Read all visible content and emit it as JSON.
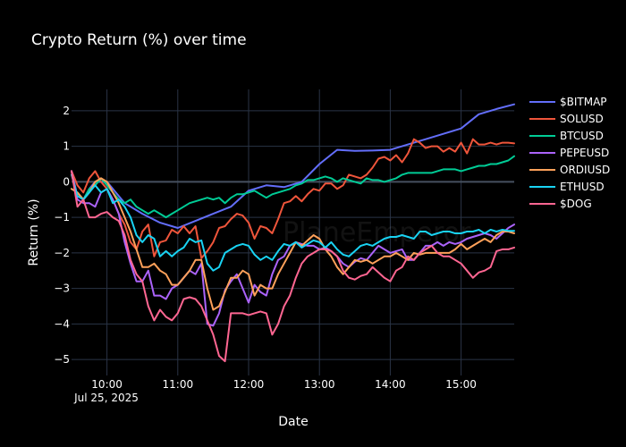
{
  "chart_data": {
    "type": "line",
    "title": "Crypto Return (%) over time",
    "xlabel": "Date",
    "ylabel": "Return (%)",
    "watermark": "PlaneEmperor",
    "x_date_label": "Jul 25, 2025",
    "x_tick_labels": [
      "10:00",
      "11:00",
      "12:00",
      "13:00",
      "14:00",
      "15:00"
    ],
    "x_tick_hours": [
      10,
      11,
      12,
      13,
      14,
      15
    ],
    "xlim_hours": [
      9.5,
      15.75
    ],
    "y_ticks": [
      2,
      1,
      0,
      -1,
      -2,
      -3,
      -4,
      -5
    ],
    "y_tick_labels": [
      "2",
      "1",
      "0",
      "−1",
      "−2",
      "−3",
      "−4",
      "−5"
    ],
    "ylim": [
      -5.45,
      2.6
    ],
    "grid": true,
    "legend_position": "top-right",
    "colors": {
      "background": "#000000",
      "grid": "#2a3446",
      "zeroline": "#46505f",
      "text": "#ffffff"
    },
    "series": [
      {
        "name": "$BITMAP",
        "color": "#636efa",
        "x": [
          "09:30",
          "09:35",
          "09:40",
          "09:45",
          "09:50",
          "10:00",
          "10:05",
          "10:15",
          "10:30",
          "10:45",
          "11:00",
          "11:15",
          "11:30",
          "11:45",
          "12:00",
          "12:15",
          "12:30",
          "12:45",
          "13:00",
          "13:15",
          "13:30",
          "13:45",
          "14:00",
          "14:15",
          "14:30",
          "14:45",
          "15:00",
          "15:15",
          "15:30",
          "15:45"
        ],
        "y": [
          0.3,
          -0.4,
          -0.5,
          -0.2,
          0.0,
          0.0,
          -0.2,
          -0.6,
          -0.9,
          -1.15,
          -1.3,
          -1.1,
          -0.9,
          -0.7,
          -0.25,
          -0.1,
          -0.15,
          0.0,
          0.5,
          0.9,
          0.87,
          0.88,
          0.9,
          1.05,
          1.2,
          1.35,
          1.5,
          1.9,
          2.05,
          2.18
        ]
      },
      {
        "name": "SOLUSD",
        "color": "#ef553b",
        "x": [
          "09:30",
          "09:35",
          "09:40",
          "09:45",
          "09:50",
          "09:55",
          "10:00",
          "10:05",
          "10:10",
          "10:15",
          "10:20",
          "10:25",
          "10:30",
          "10:35",
          "10:40",
          "10:45",
          "10:50",
          "10:55",
          "11:00",
          "11:05",
          "11:10",
          "11:15",
          "11:20",
          "11:25",
          "11:30",
          "11:35",
          "11:40",
          "11:45",
          "11:50",
          "11:55",
          "12:00",
          "12:05",
          "12:10",
          "12:15",
          "12:20",
          "12:25",
          "12:30",
          "12:35",
          "12:40",
          "12:45",
          "12:50",
          "12:55",
          "13:00",
          "13:05",
          "13:10",
          "13:15",
          "13:20",
          "13:25",
          "13:30",
          "13:35",
          "13:40",
          "13:45",
          "13:50",
          "13:55",
          "14:00",
          "14:05",
          "14:10",
          "14:15",
          "14:20",
          "14:25",
          "14:30",
          "14:35",
          "14:40",
          "14:45",
          "14:50",
          "14:55",
          "15:00",
          "15:05",
          "15:10",
          "15:15",
          "15:20",
          "15:25",
          "15:30",
          "15:35",
          "15:40",
          "15:45"
        ],
        "y": [
          0.3,
          -0.1,
          -0.3,
          0.1,
          0.3,
          0.0,
          -0.2,
          -0.5,
          -0.9,
          -1.2,
          -1.7,
          -1.9,
          -1.4,
          -1.2,
          -2.1,
          -1.7,
          -1.65,
          -1.35,
          -1.45,
          -1.25,
          -1.45,
          -1.25,
          -2.15,
          -1.95,
          -1.7,
          -1.3,
          -1.25,
          -1.05,
          -0.9,
          -0.95,
          -1.15,
          -1.6,
          -1.25,
          -1.3,
          -1.45,
          -1.05,
          -0.6,
          -0.55,
          -0.4,
          -0.55,
          -0.35,
          -0.2,
          -0.25,
          -0.05,
          -0.05,
          -0.2,
          -0.1,
          0.2,
          0.15,
          0.1,
          0.2,
          0.4,
          0.65,
          0.7,
          0.6,
          0.75,
          0.55,
          0.8,
          1.2,
          1.1,
          0.95,
          1.0,
          1.0,
          0.85,
          0.95,
          0.85,
          1.1,
          0.8,
          1.2,
          1.05,
          1.05,
          1.1,
          1.05,
          1.1,
          1.1,
          1.08
        ]
      },
      {
        "name": "BTCUSD",
        "color": "#00cc96",
        "x": [
          "09:30",
          "09:35",
          "09:40",
          "09:45",
          "09:50",
          "09:55",
          "10:00",
          "10:05",
          "10:10",
          "10:15",
          "10:20",
          "10:25",
          "10:30",
          "10:35",
          "10:40",
          "10:45",
          "10:50",
          "10:55",
          "11:00",
          "11:05",
          "11:10",
          "11:15",
          "11:20",
          "11:25",
          "11:30",
          "11:35",
          "11:40",
          "11:45",
          "11:50",
          "11:55",
          "12:00",
          "12:05",
          "12:10",
          "12:15",
          "12:20",
          "12:25",
          "12:30",
          "12:35",
          "12:40",
          "12:45",
          "12:50",
          "12:55",
          "13:00",
          "13:05",
          "13:10",
          "13:15",
          "13:20",
          "13:25",
          "13:30",
          "13:35",
          "13:40",
          "13:45",
          "13:50",
          "13:55",
          "14:00",
          "14:05",
          "14:10",
          "14:15",
          "14:20",
          "14:25",
          "14:30",
          "14:35",
          "14:40",
          "14:45",
          "14:50",
          "14:55",
          "15:00",
          "15:05",
          "15:10",
          "15:15",
          "15:20",
          "15:25",
          "15:30",
          "15:35",
          "15:40",
          "15:45"
        ],
        "y": [
          -0.2,
          -0.3,
          -0.5,
          -0.2,
          -0.1,
          0.1,
          -0.1,
          -0.3,
          -0.5,
          -0.6,
          -0.5,
          -0.7,
          -0.8,
          -0.9,
          -0.8,
          -0.9,
          -1.0,
          -0.9,
          -0.8,
          -0.7,
          -0.6,
          -0.55,
          -0.5,
          -0.45,
          -0.5,
          -0.45,
          -0.6,
          -0.45,
          -0.35,
          -0.35,
          -0.3,
          -0.25,
          -0.35,
          -0.45,
          -0.35,
          -0.3,
          -0.25,
          -0.2,
          -0.1,
          -0.05,
          0.05,
          0.05,
          0.1,
          0.15,
          0.1,
          0.0,
          0.1,
          0.05,
          0.0,
          -0.05,
          0.1,
          0.05,
          0.05,
          0.0,
          0.05,
          0.1,
          0.2,
          0.25,
          0.25,
          0.25,
          0.25,
          0.25,
          0.3,
          0.35,
          0.35,
          0.35,
          0.3,
          0.35,
          0.4,
          0.45,
          0.45,
          0.5,
          0.5,
          0.55,
          0.6,
          0.72
        ]
      },
      {
        "name": "PEPEUSD",
        "color": "#ab63fa",
        "x": [
          "09:30",
          "09:35",
          "09:40",
          "09:45",
          "09:50",
          "09:55",
          "10:00",
          "10:05",
          "10:10",
          "10:15",
          "10:20",
          "10:25",
          "10:30",
          "10:35",
          "10:40",
          "10:45",
          "10:50",
          "10:55",
          "11:00",
          "11:05",
          "11:10",
          "11:15",
          "11:20",
          "11:25",
          "11:30",
          "11:35",
          "11:40",
          "11:45",
          "11:50",
          "11:55",
          "12:00",
          "12:05",
          "12:10",
          "12:15",
          "12:20",
          "12:25",
          "12:30",
          "12:35",
          "12:40",
          "12:45",
          "12:50",
          "12:55",
          "13:00",
          "13:05",
          "13:10",
          "13:15",
          "13:20",
          "13:25",
          "13:30",
          "13:35",
          "13:40",
          "13:45",
          "13:50",
          "13:55",
          "14:00",
          "14:05",
          "14:10",
          "14:15",
          "14:20",
          "14:25",
          "14:30",
          "14:35",
          "14:40",
          "14:45",
          "14:50",
          "14:55",
          "15:00",
          "15:05",
          "15:10",
          "15:15",
          "15:20",
          "15:25",
          "15:30",
          "15:35",
          "15:40",
          "15:45"
        ],
        "y": [
          0.3,
          -0.5,
          -0.6,
          -0.6,
          -0.7,
          -0.3,
          -0.2,
          -0.5,
          -0.9,
          -1.7,
          -2.3,
          -2.8,
          -2.8,
          -2.5,
          -3.2,
          -3.2,
          -3.3,
          -3.0,
          -2.9,
          -2.7,
          -2.5,
          -2.6,
          -2.3,
          -4.0,
          -4.05,
          -3.7,
          -3.05,
          -2.8,
          -2.6,
          -3.0,
          -3.4,
          -2.9,
          -3.1,
          -3.2,
          -2.6,
          -2.2,
          -2.1,
          -1.8,
          -1.7,
          -1.75,
          -1.8,
          -1.8,
          -1.9,
          -1.85,
          -1.95,
          -2.1,
          -2.3,
          -2.4,
          -2.25,
          -2.15,
          -2.2,
          -2.0,
          -1.8,
          -1.9,
          -2.0,
          -1.95,
          -1.9,
          -2.2,
          -2.2,
          -2.0,
          -1.8,
          -1.8,
          -1.7,
          -1.8,
          -1.7,
          -1.75,
          -1.7,
          -1.6,
          -1.55,
          -1.5,
          -1.45,
          -1.5,
          -1.6,
          -1.45,
          -1.3,
          -1.2
        ]
      },
      {
        "name": "ORDIUSD",
        "color": "#ffa15a",
        "x": [
          "09:30",
          "09:35",
          "09:40",
          "09:45",
          "09:50",
          "09:55",
          "10:00",
          "10:05",
          "10:10",
          "10:15",
          "10:20",
          "10:25",
          "10:30",
          "10:35",
          "10:40",
          "10:45",
          "10:50",
          "10:55",
          "11:00",
          "11:05",
          "11:10",
          "11:15",
          "11:20",
          "11:25",
          "11:30",
          "11:35",
          "11:40",
          "11:45",
          "11:50",
          "11:55",
          "12:00",
          "12:05",
          "12:10",
          "12:15",
          "12:20",
          "12:25",
          "12:30",
          "12:35",
          "12:40",
          "12:45",
          "12:50",
          "12:55",
          "13:00",
          "13:05",
          "13:10",
          "13:15",
          "13:20",
          "13:25",
          "13:30",
          "13:35",
          "13:40",
          "13:45",
          "13:50",
          "13:55",
          "14:00",
          "14:05",
          "14:10",
          "14:15",
          "14:20",
          "14:25",
          "14:30",
          "14:35",
          "14:40",
          "14:45",
          "14:50",
          "14:55",
          "15:00",
          "15:05",
          "15:10",
          "15:15",
          "15:20",
          "15:25",
          "15:30",
          "15:35",
          "15:40",
          "15:45"
        ],
        "y": [
          -0.2,
          -0.3,
          -0.5,
          -0.3,
          0.0,
          0.1,
          0.0,
          -0.3,
          -0.6,
          -1.0,
          -1.4,
          -1.9,
          -2.4,
          -2.4,
          -2.3,
          -2.5,
          -2.6,
          -2.9,
          -2.9,
          -2.7,
          -2.5,
          -2.2,
          -2.2,
          -3.0,
          -3.6,
          -3.5,
          -3.1,
          -2.7,
          -2.7,
          -2.5,
          -2.6,
          -3.2,
          -2.9,
          -3.0,
          -3.0,
          -2.6,
          -2.3,
          -2.0,
          -1.7,
          -1.8,
          -1.65,
          -1.5,
          -1.6,
          -1.9,
          -2.1,
          -2.4,
          -2.6,
          -2.4,
          -2.2,
          -2.25,
          -2.2,
          -2.3,
          -2.2,
          -2.1,
          -2.1,
          -2.0,
          -2.1,
          -2.2,
          -2.0,
          -2.05,
          -2.0,
          -2.0,
          -2.0,
          -2.0,
          -2.0,
          -1.9,
          -1.75,
          -1.9,
          -1.8,
          -1.7,
          -1.6,
          -1.7,
          -1.5,
          -1.4,
          -1.4,
          -1.45
        ]
      },
      {
        "name": "ETHUSD",
        "color": "#19d3f3",
        "x": [
          "09:30",
          "09:35",
          "09:40",
          "09:45",
          "09:50",
          "09:55",
          "10:00",
          "10:05",
          "10:10",
          "10:15",
          "10:20",
          "10:25",
          "10:30",
          "10:35",
          "10:40",
          "10:45",
          "10:50",
          "10:55",
          "11:00",
          "11:05",
          "11:10",
          "11:15",
          "11:20",
          "11:25",
          "11:30",
          "11:35",
          "11:40",
          "11:45",
          "11:50",
          "11:55",
          "12:00",
          "12:05",
          "12:10",
          "12:15",
          "12:20",
          "12:25",
          "12:30",
          "12:35",
          "12:40",
          "12:45",
          "12:50",
          "12:55",
          "13:00",
          "13:05",
          "13:10",
          "13:15",
          "13:20",
          "13:25",
          "13:30",
          "13:35",
          "13:40",
          "13:45",
          "13:50",
          "13:55",
          "14:00",
          "14:05",
          "14:10",
          "14:15",
          "14:20",
          "14:25",
          "14:30",
          "14:35",
          "14:40",
          "14:45",
          "14:50",
          "14:55",
          "15:00",
          "15:05",
          "15:10",
          "15:15",
          "15:20",
          "15:25",
          "15:30",
          "15:35",
          "15:40",
          "15:45"
        ],
        "y": [
          0.2,
          -0.4,
          -0.5,
          -0.3,
          -0.1,
          -0.3,
          -0.2,
          -0.6,
          -0.5,
          -0.7,
          -1.0,
          -1.5,
          -1.7,
          -1.5,
          -1.6,
          -2.1,
          -1.95,
          -2.1,
          -1.95,
          -1.85,
          -1.6,
          -1.7,
          -1.65,
          -2.3,
          -2.5,
          -2.4,
          -2.0,
          -1.9,
          -1.8,
          -1.75,
          -1.8,
          -2.05,
          -2.2,
          -2.1,
          -2.2,
          -1.95,
          -1.75,
          -1.8,
          -1.7,
          -1.85,
          -1.75,
          -1.65,
          -1.7,
          -1.85,
          -1.7,
          -1.9,
          -2.05,
          -2.1,
          -1.95,
          -1.8,
          -1.75,
          -1.8,
          -1.7,
          -1.6,
          -1.55,
          -1.55,
          -1.5,
          -1.55,
          -1.6,
          -1.4,
          -1.4,
          -1.5,
          -1.45,
          -1.4,
          -1.4,
          -1.45,
          -1.45,
          -1.4,
          -1.4,
          -1.35,
          -1.45,
          -1.35,
          -1.4,
          -1.35,
          -1.38,
          -1.38
        ]
      },
      {
        "name": "$DOG",
        "color": "#ff6692",
        "x": [
          "09:30",
          "09:35",
          "09:40",
          "09:45",
          "09:50",
          "09:55",
          "10:00",
          "10:05",
          "10:10",
          "10:15",
          "10:20",
          "10:25",
          "10:30",
          "10:35",
          "10:40",
          "10:45",
          "10:50",
          "10:55",
          "11:00",
          "11:05",
          "11:10",
          "11:15",
          "11:20",
          "11:25",
          "11:30",
          "11:35",
          "11:40",
          "11:45",
          "11:50",
          "11:55",
          "12:00",
          "12:05",
          "12:10",
          "12:15",
          "12:20",
          "12:25",
          "12:30",
          "12:35",
          "12:40",
          "12:45",
          "12:50",
          "12:55",
          "13:00",
          "13:05",
          "13:10",
          "13:15",
          "13:20",
          "13:25",
          "13:30",
          "13:35",
          "13:40",
          "13:45",
          "13:50",
          "13:55",
          "14:00",
          "14:05",
          "14:10",
          "14:15",
          "14:20",
          "14:25",
          "14:30",
          "14:35",
          "14:40",
          "14:45",
          "14:50",
          "14:55",
          "15:00",
          "15:05",
          "15:10",
          "15:15",
          "15:20",
          "15:25",
          "15:30",
          "15:35",
          "15:40",
          "15:45"
        ],
        "y": [
          0.3,
          -0.7,
          -0.5,
          -1.0,
          -1.0,
          -0.9,
          -0.85,
          -1.0,
          -1.1,
          -1.5,
          -2.2,
          -2.6,
          -2.8,
          -3.5,
          -3.9,
          -3.6,
          -3.8,
          -3.9,
          -3.7,
          -3.3,
          -3.25,
          -3.3,
          -3.5,
          -3.9,
          -4.3,
          -4.9,
          -5.05,
          -3.7,
          -3.7,
          -3.7,
          -3.75,
          -3.7,
          -3.65,
          -3.7,
          -4.3,
          -4.0,
          -3.5,
          -3.2,
          -2.7,
          -2.3,
          -2.1,
          -2.0,
          -1.9,
          -1.9,
          -1.95,
          -2.1,
          -2.5,
          -2.7,
          -2.75,
          -2.65,
          -2.6,
          -2.4,
          -2.55,
          -2.7,
          -2.8,
          -2.5,
          -2.4,
          -2.1,
          -2.2,
          -2.0,
          -1.9,
          -1.8,
          -2.0,
          -2.1,
          -2.1,
          -2.2,
          -2.3,
          -2.5,
          -2.7,
          -2.55,
          -2.5,
          -2.4,
          -1.95,
          -1.9,
          -1.9,
          -1.85
        ]
      }
    ]
  }
}
